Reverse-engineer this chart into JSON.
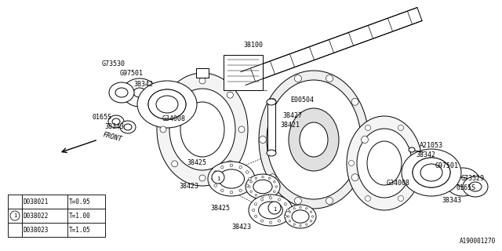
{
  "bg_color": "#ffffff",
  "diagram_id": "A190001270",
  "line_color": "#000000",
  "table": {
    "rows": [
      {
        "part": "D038021",
        "thickness": "T=0.95"
      },
      {
        "part": "D038022",
        "thickness": "T=1.00"
      },
      {
        "part": "D038023",
        "thickness": "T=1.05"
      }
    ],
    "circle_row": 1
  }
}
